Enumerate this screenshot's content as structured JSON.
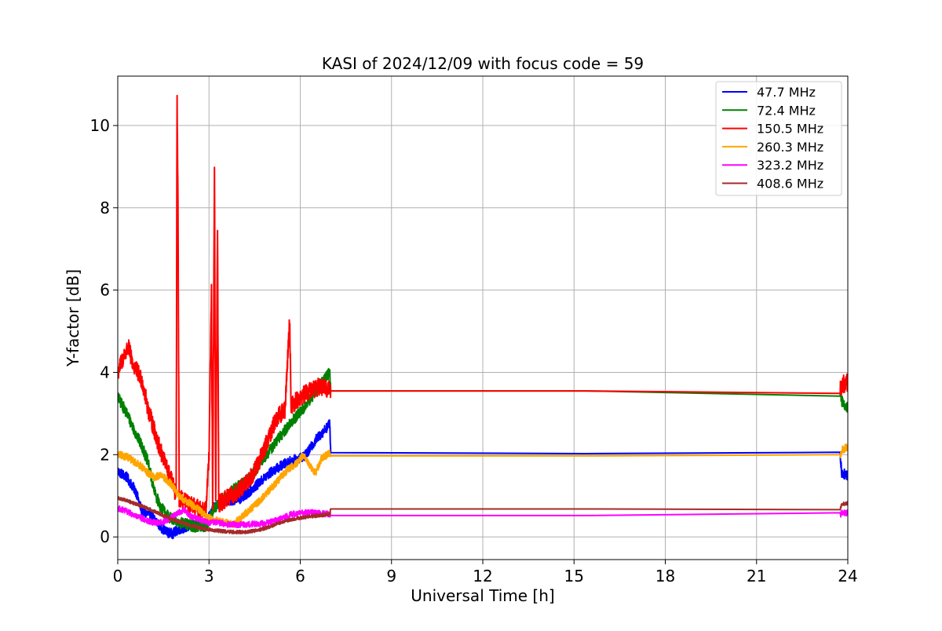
{
  "chart_data": {
    "type": "line",
    "title": "KASI of 2024/12/09 with focus code = 59",
    "xlabel": "Universal Time [h]",
    "ylabel": "Y-factor [dB]",
    "xlim": [
      0,
      24
    ],
    "ylim": [
      -0.55,
      11.2
    ],
    "xticks": [
      0,
      3,
      6,
      9,
      12,
      15,
      18,
      21,
      24
    ],
    "yticks": [
      0,
      2,
      4,
      6,
      8,
      10
    ],
    "grid": true,
    "legend_position": "top-right",
    "series": [
      {
        "name": " 47.7 MHz",
        "color": "#0000ff",
        "points": [
          [
            0,
            1.6
          ],
          [
            0.3,
            1.45
          ],
          [
            0.6,
            1.1
          ],
          [
            0.8,
            0.6
          ],
          [
            1.0,
            0.55
          ],
          [
            1.2,
            0.45
          ],
          [
            1.4,
            0.25
          ],
          [
            1.6,
            0.12
          ],
          [
            1.8,
            0.08
          ],
          [
            2.0,
            0.18
          ],
          [
            2.3,
            0.25
          ],
          [
            2.6,
            0.3
          ],
          [
            2.9,
            0.35
          ],
          [
            3.2,
            0.75
          ],
          [
            3.5,
            0.85
          ],
          [
            3.8,
            0.9
          ],
          [
            4.1,
            0.95
          ],
          [
            4.4,
            1.15
          ],
          [
            4.7,
            1.35
          ],
          [
            5.0,
            1.55
          ],
          [
            5.3,
            1.7
          ],
          [
            5.6,
            1.82
          ],
          [
            5.9,
            1.9
          ],
          [
            6.2,
            2.0
          ],
          [
            6.5,
            2.35
          ],
          [
            6.8,
            2.6
          ],
          [
            6.97,
            2.75
          ],
          [
            7.0,
            2.05
          ],
          [
            23.75,
            2.0
          ],
          [
            23.8,
            1.55
          ],
          [
            24.0,
            1.5
          ]
        ],
        "noise": 0.12
      },
      {
        "name": " 72.4 MHz",
        "color": "#008000",
        "points": [
          [
            0,
            3.4
          ],
          [
            0.3,
            3.0
          ],
          [
            0.6,
            2.5
          ],
          [
            0.8,
            2.2
          ],
          [
            1.0,
            1.8
          ],
          [
            1.2,
            1.1
          ],
          [
            1.4,
            0.75
          ],
          [
            1.6,
            0.55
          ],
          [
            1.8,
            0.42
          ],
          [
            2.0,
            0.35
          ],
          [
            2.3,
            0.3
          ],
          [
            2.6,
            0.25
          ],
          [
            2.9,
            0.25
          ],
          [
            3.2,
            0.7
          ],
          [
            3.5,
            0.95
          ],
          [
            3.8,
            1.15
          ],
          [
            4.1,
            1.3
          ],
          [
            4.4,
            1.5
          ],
          [
            4.7,
            1.8
          ],
          [
            5.0,
            2.1
          ],
          [
            5.3,
            2.4
          ],
          [
            5.6,
            2.7
          ],
          [
            5.9,
            2.95
          ],
          [
            6.2,
            3.2
          ],
          [
            6.5,
            3.55
          ],
          [
            6.8,
            3.85
          ],
          [
            6.97,
            4.0
          ],
          [
            7.0,
            3.55
          ],
          [
            23.75,
            3.55
          ],
          [
            23.8,
            3.3
          ],
          [
            24.0,
            3.15
          ]
        ],
        "noise": 0.14
      },
      {
        "name": " 150.5 MHz",
        "color": "#ff0000",
        "points": [
          [
            0,
            4.0
          ],
          [
            0.2,
            4.4
          ],
          [
            0.35,
            4.6
          ],
          [
            0.5,
            4.2
          ],
          [
            0.8,
            3.8
          ],
          [
            1.0,
            3.1
          ],
          [
            1.2,
            2.6
          ],
          [
            1.4,
            2.1
          ],
          [
            1.6,
            1.7
          ],
          [
            1.8,
            1.3
          ],
          [
            1.92,
            1.0
          ],
          [
            1.95,
            10.7
          ],
          [
            1.98,
            8.0
          ],
          [
            2.02,
            0.95
          ],
          [
            2.3,
            0.8
          ],
          [
            2.6,
            0.7
          ],
          [
            2.9,
            0.65
          ],
          [
            3.0,
            2.0
          ],
          [
            3.08,
            6.0
          ],
          [
            3.12,
            0.7
          ],
          [
            3.18,
            9.0
          ],
          [
            3.22,
            0.75
          ],
          [
            3.28,
            7.5
          ],
          [
            3.32,
            0.8
          ],
          [
            3.6,
            0.95
          ],
          [
            3.9,
            1.05
          ],
          [
            4.2,
            1.3
          ],
          [
            4.5,
            1.6
          ],
          [
            4.8,
            2.1
          ],
          [
            5.0,
            2.5
          ],
          [
            5.2,
            2.85
          ],
          [
            5.5,
            3.1
          ],
          [
            5.65,
            5.3
          ],
          [
            5.7,
            3.2
          ],
          [
            6.0,
            3.4
          ],
          [
            6.3,
            3.55
          ],
          [
            6.6,
            3.65
          ],
          [
            6.97,
            3.6
          ],
          [
            7.0,
            3.55
          ],
          [
            23.75,
            3.55
          ],
          [
            23.8,
            3.7
          ],
          [
            24.0,
            3.75
          ]
        ],
        "noise": 0.22
      },
      {
        "name": " 260.3 MHz",
        "color": "#ffa500",
        "points": [
          [
            0,
            2.0
          ],
          [
            0.3,
            1.95
          ],
          [
            0.6,
            1.8
          ],
          [
            0.8,
            1.7
          ],
          [
            1.0,
            1.55
          ],
          [
            1.2,
            1.45
          ],
          [
            1.4,
            1.5
          ],
          [
            1.6,
            1.4
          ],
          [
            1.8,
            1.25
          ],
          [
            2.0,
            1.0
          ],
          [
            2.3,
            0.85
          ],
          [
            2.6,
            0.7
          ],
          [
            2.9,
            0.5
          ],
          [
            3.2,
            0.4
          ],
          [
            3.5,
            0.35
          ],
          [
            3.8,
            0.3
          ],
          [
            4.1,
            0.5
          ],
          [
            4.4,
            0.7
          ],
          [
            4.7,
            0.9
          ],
          [
            5.0,
            1.15
          ],
          [
            5.3,
            1.4
          ],
          [
            5.6,
            1.65
          ],
          [
            5.9,
            1.8
          ],
          [
            6.1,
            2.0
          ],
          [
            6.3,
            1.75
          ],
          [
            6.5,
            1.55
          ],
          [
            6.7,
            1.9
          ],
          [
            6.97,
            2.05
          ],
          [
            7.0,
            1.97
          ],
          [
            23.75,
            1.97
          ],
          [
            23.8,
            2.1
          ],
          [
            24.0,
            2.2
          ]
        ],
        "noise": 0.09
      },
      {
        "name": " 323.2 MHz",
        "color": "#ff00ff",
        "points": [
          [
            0,
            0.7
          ],
          [
            0.3,
            0.62
          ],
          [
            0.6,
            0.5
          ],
          [
            0.8,
            0.45
          ],
          [
            1.0,
            0.38
          ],
          [
            1.2,
            0.35
          ],
          [
            1.4,
            0.35
          ],
          [
            1.6,
            0.4
          ],
          [
            1.8,
            0.5
          ],
          [
            2.0,
            0.6
          ],
          [
            2.2,
            0.65
          ],
          [
            2.4,
            0.5
          ],
          [
            2.6,
            0.45
          ],
          [
            2.8,
            0.4
          ],
          [
            3.0,
            0.35
          ],
          [
            3.3,
            0.35
          ],
          [
            3.6,
            0.3
          ],
          [
            3.9,
            0.3
          ],
          [
            4.2,
            0.3
          ],
          [
            4.5,
            0.32
          ],
          [
            4.8,
            0.33
          ],
          [
            5.1,
            0.38
          ],
          [
            5.4,
            0.45
          ],
          [
            5.7,
            0.55
          ],
          [
            6.0,
            0.58
          ],
          [
            6.3,
            0.6
          ],
          [
            6.6,
            0.58
          ],
          [
            6.97,
            0.55
          ],
          [
            7.0,
            0.52
          ],
          [
            23.75,
            0.52
          ],
          [
            23.8,
            0.6
          ],
          [
            24.0,
            0.58
          ]
        ],
        "noise": 0.07
      },
      {
        "name": " 408.6 MHz",
        "color": "#a52a2a",
        "points": [
          [
            0,
            0.95
          ],
          [
            0.3,
            0.88
          ],
          [
            0.6,
            0.8
          ],
          [
            0.9,
            0.72
          ],
          [
            1.2,
            0.62
          ],
          [
            1.5,
            0.52
          ],
          [
            1.8,
            0.42
          ],
          [
            2.1,
            0.35
          ],
          [
            2.4,
            0.28
          ],
          [
            2.7,
            0.22
          ],
          [
            3.0,
            0.18
          ],
          [
            3.3,
            0.15
          ],
          [
            3.6,
            0.13
          ],
          [
            3.9,
            0.12
          ],
          [
            4.2,
            0.12
          ],
          [
            4.5,
            0.15
          ],
          [
            4.8,
            0.2
          ],
          [
            5.1,
            0.28
          ],
          [
            5.4,
            0.36
          ],
          [
            5.7,
            0.42
          ],
          [
            6.0,
            0.46
          ],
          [
            6.3,
            0.5
          ],
          [
            6.6,
            0.52
          ],
          [
            6.97,
            0.55
          ],
          [
            7.0,
            0.68
          ],
          [
            23.75,
            0.68
          ],
          [
            23.8,
            0.8
          ],
          [
            24.0,
            0.82
          ]
        ],
        "noise": 0.04
      }
    ]
  }
}
